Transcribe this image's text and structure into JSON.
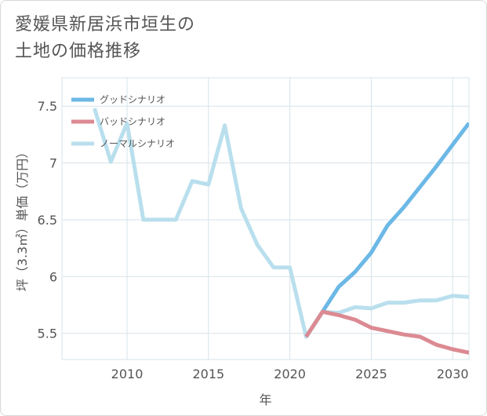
{
  "chart_data": {
    "type": "line",
    "title": "愛媛県新居浜市垣生の\n土地の価格推移",
    "xlabel": "年",
    "ylabel": "坪（3.3㎡）単価（万円）",
    "xlim": [
      2006,
      2031
    ],
    "ylim": [
      5.27,
      7.75
    ],
    "x_ticks": [
      2010,
      2015,
      2020,
      2025,
      2030
    ],
    "x_tick_labels": [
      "2010",
      "2015",
      "2020",
      "2025",
      "2030"
    ],
    "y_ticks": [
      5.5,
      6,
      6.5,
      7,
      7.5
    ],
    "y_tick_labels": [
      "5.5",
      "6",
      "6.5",
      "7",
      "7.5"
    ],
    "grid": true,
    "legend_position": "top-left",
    "series": [
      {
        "name": "グッドシナリオ",
        "color": "#6cb8e6",
        "x": [
          2021,
          2022,
          2023,
          2024,
          2025,
          2026,
          2027,
          2028,
          2029,
          2030,
          2031
        ],
        "y": [
          5.47,
          5.69,
          5.91,
          6.04,
          6.21,
          6.45,
          6.61,
          6.79,
          6.97,
          7.16,
          7.35
        ]
      },
      {
        "name": "バッドシナリオ",
        "color": "#dc8a92",
        "x": [
          2021,
          2022,
          2023,
          2024,
          2025,
          2026,
          2027,
          2028,
          2029,
          2030,
          2031
        ],
        "y": [
          5.47,
          5.69,
          5.66,
          5.62,
          5.55,
          5.52,
          5.49,
          5.47,
          5.4,
          5.36,
          5.33
        ]
      },
      {
        "name": "ノーマルシナリオ",
        "color": "#b9dfed",
        "x": [
          2008,
          2009,
          2010,
          2011,
          2012,
          2013,
          2014,
          2015,
          2016,
          2017,
          2018,
          2019,
          2020,
          2021,
          2022,
          2023,
          2024,
          2025,
          2026,
          2027,
          2028,
          2029,
          2030,
          2031
        ],
        "y": [
          7.48,
          7.01,
          7.35,
          6.5,
          6.5,
          6.5,
          6.84,
          6.81,
          7.33,
          6.6,
          6.28,
          6.08,
          6.08,
          5.47,
          5.69,
          5.68,
          5.73,
          5.72,
          5.77,
          5.77,
          5.79,
          5.79,
          5.83,
          5.82
        ]
      }
    ]
  }
}
